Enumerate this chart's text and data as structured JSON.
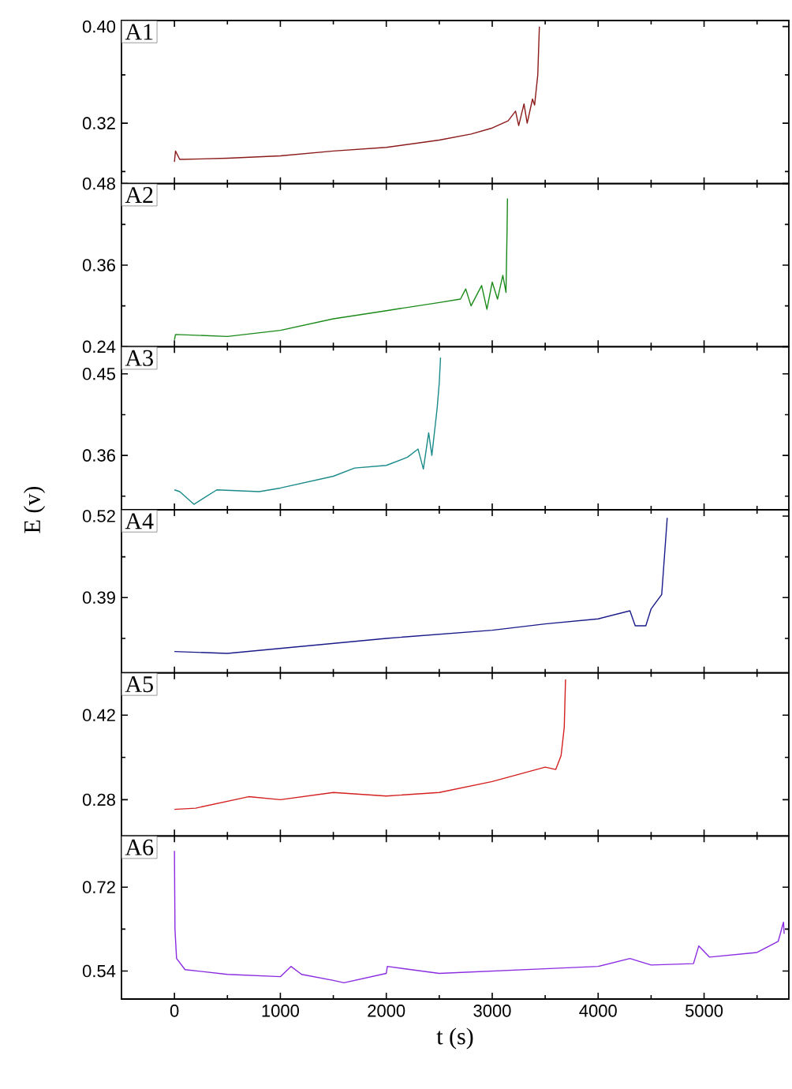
{
  "chart_data": [
    {
      "type": "line",
      "title": "A1",
      "xlim": [
        -500,
        5800
      ],
      "xticks": [
        0,
        1000,
        2000,
        3000,
        4000,
        5000,
        {
          "value": 500,
          "label": null
        },
        {
          "value": 1500,
          "label": null
        },
        {
          "value": 2500,
          "label": null
        },
        {
          "value": 3500,
          "label": null
        },
        {
          "value": 4500,
          "label": null
        },
        {
          "value": 5500,
          "label": null
        }
      ],
      "ylim": [
        0.27,
        0.405
      ],
      "yticks": [
        0.32,
        {
          "value": 0.4,
          "label": "0.40"
        },
        {
          "value": 0.28,
          "label": null
        },
        {
          "value": 0.36,
          "label": null
        }
      ],
      "tick_labels": "y",
      "series": [
        {
          "color": "#8b1a1a",
          "x": [
            0,
            10,
            50,
            500,
            1000,
            1500,
            2000,
            2500,
            2800,
            3000,
            3150,
            3220,
            3250,
            3300,
            3330,
            3380,
            3400,
            3430,
            3445
          ],
          "values": [
            0.288,
            0.297,
            0.29,
            0.291,
            0.293,
            0.297,
            0.3,
            0.306,
            0.311,
            0.316,
            0.322,
            0.33,
            0.318,
            0.336,
            0.32,
            0.34,
            0.335,
            0.36,
            0.4
          ]
        }
      ]
    },
    {
      "type": "line",
      "title": "A2",
      "xlim": [
        -500,
        5800
      ],
      "xticks": [
        0,
        1000,
        2000,
        3000,
        4000,
        5000,
        {
          "value": 500,
          "label": null
        },
        {
          "value": 1500,
          "label": null
        },
        {
          "value": 2500,
          "label": null
        },
        {
          "value": 3500,
          "label": null
        },
        {
          "value": 4500,
          "label": null
        },
        {
          "value": 5500,
          "label": null
        }
      ],
      "ylim": [
        0.24,
        0.48
      ],
      "yticks": [
        0.24,
        0.36,
        0.48,
        {
          "value": 0.3,
          "label": null
        },
        {
          "value": 0.42,
          "label": null
        }
      ],
      "tick_labels": "y",
      "series": [
        {
          "color": "#1a8a1a",
          "x": [
            0,
            10,
            500,
            1000,
            1500,
            2000,
            2500,
            2700,
            2750,
            2800,
            2900,
            2950,
            3000,
            3050,
            3100,
            3130,
            3140,
            3144
          ],
          "values": [
            0.25,
            0.258,
            0.255,
            0.264,
            0.281,
            0.293,
            0.305,
            0.31,
            0.325,
            0.3,
            0.33,
            0.295,
            0.335,
            0.31,
            0.345,
            0.32,
            0.41,
            0.458
          ]
        }
      ]
    },
    {
      "type": "line",
      "title": "A3",
      "ylabel": "E (v)",
      "xlim": [
        -500,
        5800
      ],
      "xticks": [
        0,
        1000,
        2000,
        3000,
        4000,
        5000,
        {
          "value": 500,
          "label": null
        },
        {
          "value": 1500,
          "label": null
        },
        {
          "value": 2500,
          "label": null
        },
        {
          "value": 3500,
          "label": null
        },
        {
          "value": 4500,
          "label": null
        },
        {
          "value": 5500,
          "label": null
        }
      ],
      "ylim": [
        0.3,
        0.48
      ],
      "yticks": [
        0.36,
        0.45,
        {
          "value": 0.315,
          "label": null
        },
        {
          "value": 0.405,
          "label": null
        }
      ],
      "tick_labels": "y",
      "series": [
        {
          "color": "#1a8a8a",
          "x": [
            0,
            50,
            184,
            400,
            800,
            1000,
            1500,
            1700,
            2000,
            2200,
            2300,
            2350,
            2400,
            2430,
            2480,
            2500,
            2512
          ],
          "values": [
            0.322,
            0.32,
            0.306,
            0.322,
            0.32,
            0.324,
            0.337,
            0.346,
            0.349,
            0.358,
            0.367,
            0.345,
            0.385,
            0.36,
            0.412,
            0.44,
            0.468
          ]
        }
      ]
    },
    {
      "type": "line",
      "title": "A4",
      "xlim": [
        -500,
        5800
      ],
      "xticks": [
        0,
        1000,
        2000,
        3000,
        4000,
        5000,
        {
          "value": 500,
          "label": null
        },
        {
          "value": 1500,
          "label": null
        },
        {
          "value": 2500,
          "label": null
        },
        {
          "value": 3500,
          "label": null
        },
        {
          "value": 4500,
          "label": null
        },
        {
          "value": 5500,
          "label": null
        }
      ],
      "ylim": [
        0.27,
        0.53
      ],
      "yticks": [
        0.39,
        0.52,
        {
          "value": 0.325,
          "label": null
        },
        {
          "value": 0.455,
          "label": null
        }
      ],
      "tick_labels": "y",
      "series": [
        {
          "color": "#1a1a8a",
          "x": [
            0,
            500,
            1000,
            2000,
            3000,
            3500,
            4000,
            4300,
            4350,
            4450,
            4500,
            4600,
            4620,
            4652
          ],
          "values": [
            0.304,
            0.301,
            0.309,
            0.325,
            0.338,
            0.348,
            0.356,
            0.369,
            0.345,
            0.345,
            0.372,
            0.395,
            0.442,
            0.517
          ]
        }
      ]
    },
    {
      "type": "line",
      "title": "A5",
      "xlim": [
        -500,
        5800
      ],
      "xticks": [
        0,
        1000,
        2000,
        3000,
        4000,
        5000,
        {
          "value": 500,
          "label": null
        },
        {
          "value": 1500,
          "label": null
        },
        {
          "value": 2500,
          "label": null
        },
        {
          "value": 3500,
          "label": null
        },
        {
          "value": 4500,
          "label": null
        },
        {
          "value": 5500,
          "label": null
        }
      ],
      "ylim": [
        0.22,
        0.49
      ],
      "yticks": [
        0.28,
        0.42,
        {
          "value": 0.35,
          "label": null
        }
      ],
      "tick_labels": "y",
      "series": [
        {
          "color": "#d42020",
          "x": [
            0,
            200,
            700,
            1000,
            1500,
            2000,
            2500,
            3000,
            3500,
            3600,
            3650,
            3680,
            3692
          ],
          "values": [
            0.264,
            0.266,
            0.285,
            0.28,
            0.292,
            0.286,
            0.292,
            0.31,
            0.334,
            0.33,
            0.353,
            0.4,
            0.479
          ]
        }
      ]
    },
    {
      "type": "line",
      "title": "A6",
      "xlabel": "t (s)",
      "xlim": [
        -500,
        5800
      ],
      "xticks": [
        0,
        1000,
        2000,
        3000,
        4000,
        5000,
        {
          "value": 500,
          "label": null
        },
        {
          "value": 1500,
          "label": null
        },
        {
          "value": 2500,
          "label": null
        },
        {
          "value": 3500,
          "label": null
        },
        {
          "value": 4500,
          "label": null
        },
        {
          "value": 5500,
          "label": null
        }
      ],
      "ylim": [
        0.48,
        0.83
      ],
      "yticks": [
        0.54,
        0.72,
        {
          "value": 0.63,
          "label": null
        }
      ],
      "series": [
        {
          "color": "#8a2be2",
          "x": [
            0,
            5,
            20,
            100,
            500,
            1000,
            1100,
            1200,
            1500,
            1600,
            2000,
            2010,
            2500,
            3000,
            3500,
            4000,
            4300,
            4500,
            4900,
            4950,
            5050,
            5500,
            5700,
            5750,
            5756
          ],
          "values": [
            0.798,
            0.63,
            0.567,
            0.543,
            0.533,
            0.528,
            0.55,
            0.533,
            0.52,
            0.515,
            0.535,
            0.55,
            0.535,
            0.54,
            0.545,
            0.55,
            0.567,
            0.553,
            0.556,
            0.594,
            0.57,
            0.58,
            0.604,
            0.645,
            0.62
          ]
        }
      ]
    }
  ]
}
